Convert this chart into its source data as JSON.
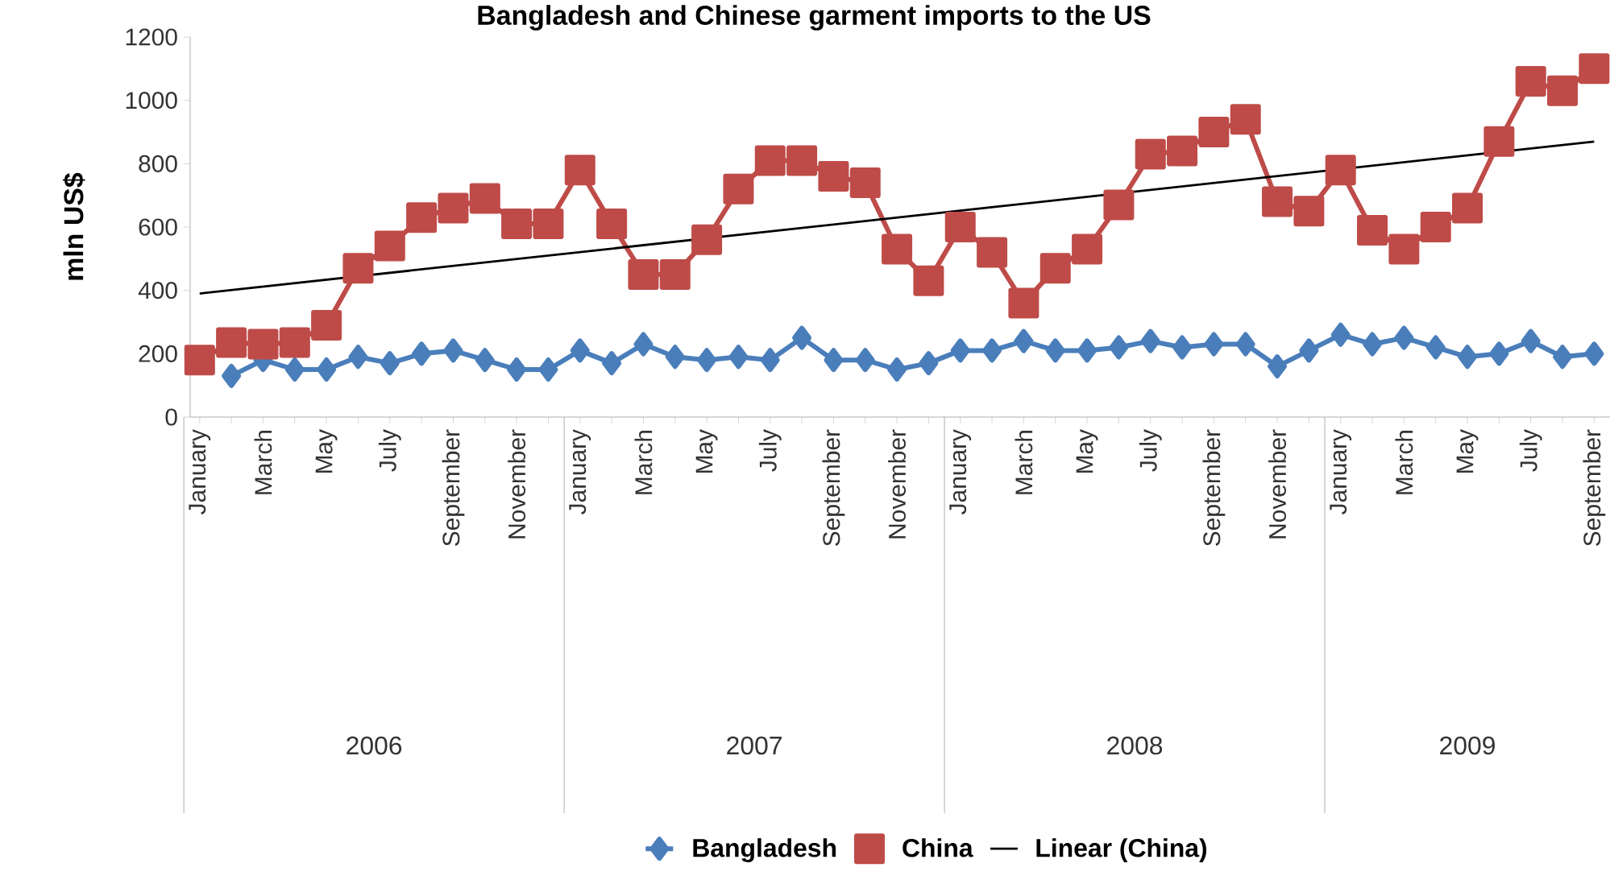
{
  "chart_data": {
    "type": "line",
    "title": "Bangladesh and Chinese garment imports to the US",
    "ylabel": "mln US$",
    "categories": [
      "January",
      null,
      "March",
      null,
      "May",
      null,
      "July",
      null,
      "September",
      null,
      "November",
      null,
      "January",
      null,
      "March",
      null,
      "May",
      null,
      "July",
      null,
      "September",
      null,
      "November",
      null,
      "January",
      null,
      "March",
      null,
      "May",
      null,
      "July",
      null,
      "September",
      null,
      "November",
      null,
      "January",
      null,
      "March",
      null,
      "May",
      null,
      "July",
      null,
      "September"
    ],
    "series": [
      {
        "name": "Bangladesh",
        "color": "#4a7ebb",
        "marker": "diamond",
        "values": [
          null,
          130,
          180,
          150,
          150,
          190,
          170,
          200,
          210,
          180,
          150,
          150,
          210,
          170,
          230,
          190,
          180,
          190,
          180,
          250,
          180,
          180,
          150,
          170,
          210,
          210,
          240,
          210,
          210,
          220,
          240,
          220,
          230,
          230,
          160,
          210,
          260,
          230,
          250,
          220,
          190,
          200,
          240,
          190,
          200
        ]
      },
      {
        "name": "China",
        "color": "#be4b48",
        "marker": "square",
        "values": [
          180,
          235,
          230,
          235,
          290,
          470,
          540,
          630,
          660,
          690,
          610,
          610,
          780,
          610,
          450,
          450,
          560,
          720,
          810,
          810,
          760,
          740,
          530,
          430,
          600,
          520,
          360,
          470,
          530,
          670,
          830,
          840,
          900,
          940,
          680,
          650,
          780,
          590,
          530,
          600,
          660,
          870,
          1060,
          1030,
          1100
        ]
      },
      {
        "name": "Linear (China)",
        "color": "#000000",
        "marker": "none",
        "values": [
          390,
          null,
          null,
          null,
          null,
          null,
          null,
          null,
          null,
          null,
          null,
          null,
          null,
          null,
          null,
          null,
          null,
          null,
          null,
          null,
          null,
          null,
          null,
          null,
          null,
          null,
          null,
          null,
          null,
          null,
          null,
          null,
          null,
          null,
          null,
          null,
          null,
          null,
          null,
          null,
          null,
          null,
          null,
          null,
          870
        ]
      }
    ],
    "ylim": [
      0,
      1200
    ],
    "yticks": [
      0,
      200,
      400,
      600,
      800,
      1000,
      1200
    ],
    "annotations": [
      "2006",
      "2007",
      "2008",
      "2009"
    ],
    "legend": "bottom"
  }
}
